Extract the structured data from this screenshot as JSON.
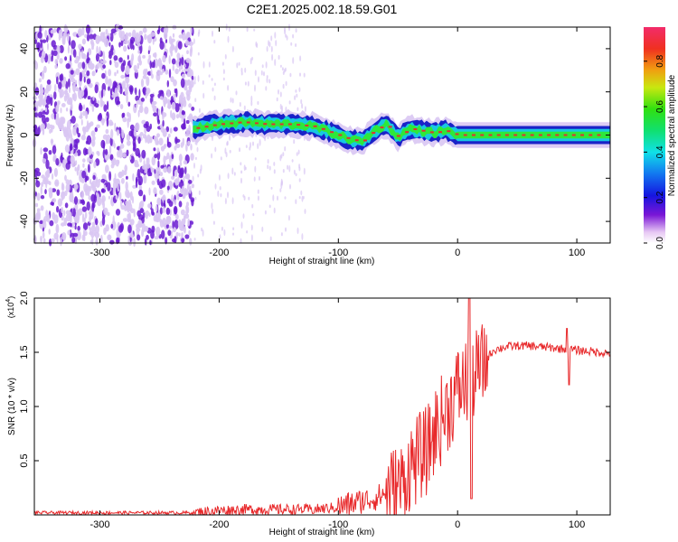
{
  "title": "C2E1.2025.002.18.59.G01",
  "colors": {
    "snr_line": "#e8292b",
    "spec_dark": "#6a1bd1",
    "spec_light": "#d9c6f3",
    "band_low": "#1a22c8",
    "band_mid": "#18c8e0",
    "band_high": "#2ee83a",
    "band_peak": "#e03030"
  },
  "chart_data": [
    {
      "type": "heatmap",
      "xlabel": "Height of straight line (km)",
      "ylabel": "Frequency (Hz)",
      "xlim": [
        -355,
        128
      ],
      "ylim": [
        -50,
        50
      ],
      "x_ticks": [
        -300,
        -200,
        -100,
        0,
        100
      ],
      "x_tick_labels": [
        "-300",
        "-200",
        "-100",
        "0",
        "100"
      ],
      "y_ticks": [
        -40,
        -20,
        0,
        20,
        40
      ],
      "y_tick_labels": [
        "-40",
        "-20",
        "0",
        "20",
        "40"
      ],
      "colorbar": {
        "label": "Normalized spectral amplitude",
        "range": [
          0,
          0.95
        ],
        "ticks": [
          0,
          0.2,
          0.4,
          0.6,
          0.8
        ],
        "tick_labels": [
          "0.0",
          "0.2",
          "0.4",
          "0.6",
          "0.8"
        ]
      },
      "ridge": {
        "x": [
          -222,
          -200,
          -180,
          -160,
          -140,
          -120,
          -100,
          -90,
          -80,
          -70,
          -60,
          -50,
          -40,
          -30,
          -20,
          -10,
          0,
          20,
          60,
          128
        ],
        "y": [
          3,
          5,
          6,
          5,
          5,
          4,
          0,
          -2,
          -3,
          2,
          5,
          -1,
          3,
          2,
          1,
          2,
          0,
          0,
          0,
          0
        ]
      },
      "noise_region_x": [
        -355,
        -222
      ]
    },
    {
      "type": "line",
      "xlabel": "Height of straight line (km)",
      "ylabel": "SNR (10 * v/v)",
      "y_multiplier": "(x10^4)",
      "y_multiplier_base": "(x10",
      "y_multiplier_exp": "4",
      "xlim": [
        -355,
        128
      ],
      "ylim": [
        0,
        2.0
      ],
      "x_ticks": [
        -300,
        -200,
        -100,
        0,
        100
      ],
      "x_tick_labels": [
        "-300",
        "-200",
        "-100",
        "0",
        "100"
      ],
      "y_ticks": [
        0.5,
        1.0,
        1.5,
        2.0
      ],
      "y_tick_labels": [
        "0.5",
        "1.0",
        "1.5",
        "2.0"
      ],
      "series": [
        {
          "x": [
            -355,
            -300,
            -250,
            -220,
            -200,
            -180,
            -160,
            -140,
            -120,
            -100,
            -90,
            -80,
            -70,
            -60,
            -50,
            -45,
            -40,
            -35,
            -30,
            -25,
            -20,
            -15,
            -10,
            -5,
            0,
            5,
            10,
            15,
            20,
            25,
            30,
            40,
            50,
            60,
            70,
            80,
            90,
            100,
            110,
            120,
            128
          ],
          "y": [
            0.02,
            0.02,
            0.02,
            0.02,
            0.04,
            0.05,
            0.05,
            0.05,
            0.05,
            0.07,
            0.1,
            0.13,
            0.15,
            0.2,
            0.25,
            0.3,
            0.45,
            0.5,
            0.55,
            0.6,
            0.75,
            0.85,
            0.95,
            1.05,
            1.15,
            1.2,
            1.25,
            1.3,
            1.35,
            1.45,
            1.52,
            1.55,
            1.56,
            1.56,
            1.55,
            1.54,
            1.53,
            1.52,
            1.51,
            1.5,
            1.49
          ]
        }
      ]
    }
  ]
}
